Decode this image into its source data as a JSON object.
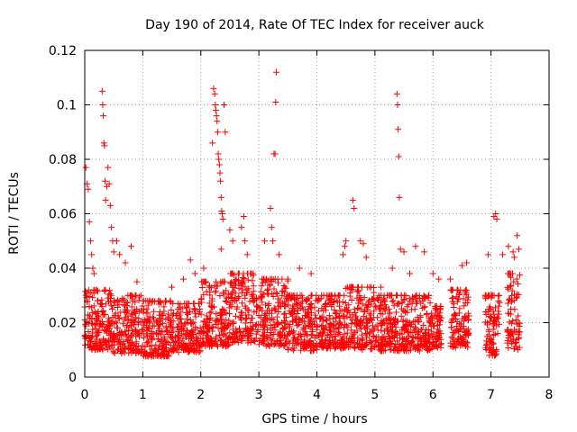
{
  "chart_data": {
    "type": "scatter",
    "title": "Day 190 of 2014, Rate Of TEC Index for receiver auck",
    "xlabel": "GPS time / hours",
    "ylabel": "ROTI / TECUs",
    "xlim": [
      0,
      8
    ],
    "ylim": [
      0,
      0.12
    ],
    "xticks": [
      "0",
      "1",
      "2",
      "3",
      "4",
      "5",
      "6",
      "7",
      "8"
    ],
    "yticks": [
      "0",
      "0.02",
      "0.04",
      "0.06",
      "0.08",
      "0.1",
      "0.12"
    ],
    "grid": true,
    "marker": "+",
    "color": "#ff0000",
    "series": [
      {
        "name": "ROTI",
        "points": [
          [
            0.02,
            0.077
          ],
          [
            0.04,
            0.071
          ],
          [
            0.06,
            0.069
          ],
          [
            0.08,
            0.057
          ],
          [
            0.1,
            0.05
          ],
          [
            0.12,
            0.045
          ],
          [
            0.14,
            0.04
          ],
          [
            0.16,
            0.038
          ],
          [
            0.3,
            0.105
          ],
          [
            0.31,
            0.1
          ],
          [
            0.32,
            0.096
          ],
          [
            0.33,
            0.086
          ],
          [
            0.34,
            0.085
          ],
          [
            0.35,
            0.072
          ],
          [
            0.36,
            0.065
          ],
          [
            0.38,
            0.07
          ],
          [
            0.4,
            0.077
          ],
          [
            0.42,
            0.071
          ],
          [
            0.44,
            0.063
          ],
          [
            0.46,
            0.055
          ],
          [
            0.48,
            0.05
          ],
          [
            0.5,
            0.046
          ],
          [
            0.55,
            0.05
          ],
          [
            0.6,
            0.045
          ],
          [
            0.7,
            0.042
          ],
          [
            0.8,
            0.048
          ],
          [
            0.9,
            0.035
          ],
          [
            1.4,
            0.028
          ],
          [
            1.5,
            0.033
          ],
          [
            1.7,
            0.036
          ],
          [
            1.82,
            0.043
          ],
          [
            1.9,
            0.038
          ],
          [
            2.05,
            0.04
          ],
          [
            2.2,
            0.086
          ],
          [
            2.22,
            0.106
          ],
          [
            2.24,
            0.104
          ],
          [
            2.25,
            0.1
          ],
          [
            2.26,
            0.098
          ],
          [
            2.27,
            0.096
          ],
          [
            2.28,
            0.094
          ],
          [
            2.29,
            0.09
          ],
          [
            2.3,
            0.082
          ],
          [
            2.31,
            0.08
          ],
          [
            2.32,
            0.078
          ],
          [
            2.33,
            0.075
          ],
          [
            2.34,
            0.072
          ],
          [
            2.35,
            0.066
          ],
          [
            2.36,
            0.061
          ],
          [
            2.37,
            0.06
          ],
          [
            2.38,
            0.058
          ],
          [
            2.4,
            0.1
          ],
          [
            2.42,
            0.09
          ],
          [
            2.35,
            0.047
          ],
          [
            2.5,
            0.054
          ],
          [
            2.55,
            0.05
          ],
          [
            2.7,
            0.055
          ],
          [
            2.74,
            0.059
          ],
          [
            2.76,
            0.05
          ],
          [
            2.8,
            0.045
          ],
          [
            3.1,
            0.05
          ],
          [
            3.2,
            0.062
          ],
          [
            3.22,
            0.055
          ],
          [
            3.24,
            0.05
          ],
          [
            3.26,
            0.082
          ],
          [
            3.28,
            0.082
          ],
          [
            3.29,
            0.101
          ],
          [
            3.3,
            0.112
          ],
          [
            3.35,
            0.045
          ],
          [
            3.5,
            0.036
          ],
          [
            3.7,
            0.04
          ],
          [
            3.9,
            0.038
          ],
          [
            4.45,
            0.045
          ],
          [
            4.48,
            0.048
          ],
          [
            4.5,
            0.05
          ],
          [
            4.62,
            0.065
          ],
          [
            4.64,
            0.062
          ],
          [
            4.75,
            0.05
          ],
          [
            4.8,
            0.049
          ],
          [
            4.85,
            0.044
          ],
          [
            5.1,
            0.033
          ],
          [
            5.3,
            0.04
          ],
          [
            5.38,
            0.104
          ],
          [
            5.39,
            0.1
          ],
          [
            5.4,
            0.091
          ],
          [
            5.41,
            0.081
          ],
          [
            5.42,
            0.066
          ],
          [
            5.44,
            0.047
          ],
          [
            5.5,
            0.046
          ],
          [
            5.6,
            0.038
          ],
          [
            5.7,
            0.048
          ],
          [
            5.85,
            0.046
          ],
          [
            6.0,
            0.038
          ],
          [
            6.1,
            0.036
          ],
          [
            6.3,
            0.036
          ],
          [
            6.5,
            0.041
          ],
          [
            6.58,
            0.042
          ],
          [
            6.95,
            0.045
          ],
          [
            7.05,
            0.059
          ],
          [
            7.08,
            0.06
          ],
          [
            7.1,
            0.058
          ],
          [
            7.2,
            0.045
          ],
          [
            7.3,
            0.048
          ],
          [
            7.38,
            0.046
          ],
          [
            7.4,
            0.044
          ],
          [
            7.45,
            0.052
          ],
          [
            7.48,
            0.047
          ]
        ],
        "bands": [
          [
            0.0,
            0.45,
            0.006,
            0.032
          ],
          [
            0.45,
            1.0,
            0.005,
            0.03
          ],
          [
            1.0,
            1.5,
            0.004,
            0.028
          ],
          [
            1.5,
            2.0,
            0.006,
            0.027
          ],
          [
            2.0,
            2.5,
            0.007,
            0.035
          ],
          [
            2.5,
            3.0,
            0.008,
            0.038
          ],
          [
            3.0,
            3.5,
            0.007,
            0.036
          ],
          [
            3.5,
            4.0,
            0.006,
            0.03
          ],
          [
            4.0,
            4.5,
            0.007,
            0.03
          ],
          [
            4.5,
            5.0,
            0.006,
            0.033
          ],
          [
            5.0,
            5.5,
            0.006,
            0.03
          ],
          [
            5.5,
            6.0,
            0.006,
            0.03
          ],
          [
            6.0,
            6.15,
            0.008,
            0.026
          ],
          [
            6.3,
            6.62,
            0.007,
            0.032
          ],
          [
            6.9,
            7.15,
            0.004,
            0.03
          ],
          [
            7.28,
            7.5,
            0.005,
            0.038
          ]
        ]
      }
    ]
  }
}
